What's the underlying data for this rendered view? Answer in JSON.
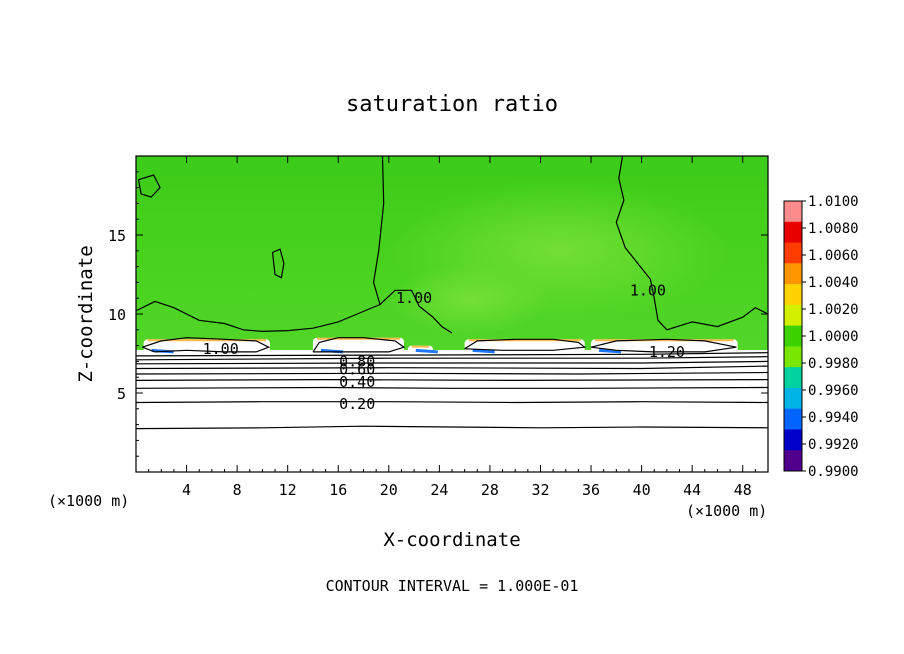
{
  "chart_data": {
    "type": "heatmap",
    "title": "saturation ratio",
    "xlabel": "X-coordinate",
    "ylabel": "Z-coordinate",
    "x_unit_left": "(×1000 m)",
    "x_unit_right": "(×1000 m)",
    "xlim": [
      0,
      50
    ],
    "ylim": [
      0,
      20
    ],
    "x_ticks": [
      4,
      8,
      12,
      16,
      20,
      24,
      28,
      32,
      36,
      40,
      44,
      48
    ],
    "y_ticks": [
      5,
      10,
      15
    ],
    "footer": "CONTOUR INTERVAL = 1.000E-01",
    "colorbar": {
      "ticks": [
        "1.0100",
        "1.0080",
        "1.0060",
        "1.0040",
        "1.0020",
        "1.0000",
        "0.9980",
        "0.9960",
        "0.9940",
        "0.9920",
        "0.9900"
      ],
      "colors": [
        "#ff8c8c",
        "#e60000",
        "#ff3c00",
        "#ff9600",
        "#ffd200",
        "#d2f000",
        "#3cd200",
        "#78e600",
        "#00d2a0",
        "#00b4e6",
        "#0064ff",
        "#0000c8",
        "#50008c"
      ]
    },
    "contour_labels": [
      {
        "text": "0.20",
        "x": 17.5,
        "y": 4.3
      },
      {
        "text": "0.40",
        "x": 17.5,
        "y": 5.7
      },
      {
        "text": "0.60",
        "x": 17.5,
        "y": 6.5
      },
      {
        "text": "0.80",
        "x": 17.5,
        "y": 7.0
      },
      {
        "text": "1.00",
        "x": 22.0,
        "y": 11.0
      },
      {
        "text": "1.00",
        "x": 40.5,
        "y": 11.5
      },
      {
        "text": "1.00",
        "x": 6.7,
        "y": 7.8
      },
      {
        "text": "1.20",
        "x": 42.0,
        "y": 7.6
      }
    ],
    "contours": [
      {
        "level": "0.10",
        "points": [
          [
            0,
            2.75
          ],
          [
            10,
            2.8
          ],
          [
            18,
            2.9
          ],
          [
            25,
            2.85
          ],
          [
            32,
            2.8
          ],
          [
            40,
            2.85
          ],
          [
            50,
            2.8
          ]
        ]
      },
      {
        "level": "0.20",
        "points": [
          [
            0,
            4.4
          ],
          [
            10,
            4.45
          ],
          [
            20,
            4.45
          ],
          [
            30,
            4.4
          ],
          [
            40,
            4.45
          ],
          [
            50,
            4.4
          ]
        ]
      },
      {
        "level": "0.30",
        "points": [
          [
            0,
            5.3
          ],
          [
            15,
            5.35
          ],
          [
            25,
            5.3
          ],
          [
            35,
            5.3
          ],
          [
            50,
            5.35
          ]
        ]
      },
      {
        "level": "0.40",
        "points": [
          [
            0,
            5.8
          ],
          [
            15,
            5.85
          ],
          [
            30,
            5.8
          ],
          [
            50,
            5.85
          ]
        ]
      },
      {
        "level": "0.50",
        "points": [
          [
            0,
            6.2
          ],
          [
            20,
            6.25
          ],
          [
            35,
            6.2
          ],
          [
            50,
            6.3
          ]
        ]
      },
      {
        "level": "0.60",
        "points": [
          [
            0,
            6.55
          ],
          [
            20,
            6.6
          ],
          [
            40,
            6.55
          ],
          [
            50,
            6.7
          ]
        ]
      },
      {
        "level": "0.70",
        "points": [
          [
            0,
            6.85
          ],
          [
            20,
            6.9
          ],
          [
            40,
            6.9
          ],
          [
            50,
            7.0
          ]
        ]
      },
      {
        "level": "0.80",
        "points": [
          [
            0,
            7.1
          ],
          [
            20,
            7.2
          ],
          [
            40,
            7.2
          ],
          [
            50,
            7.3
          ]
        ]
      },
      {
        "level": "0.90",
        "points": [
          [
            0,
            7.35
          ],
          [
            20,
            7.4
          ],
          [
            40,
            7.45
          ],
          [
            50,
            7.55
          ]
        ]
      },
      {
        "level": "1.00",
        "points": [
          [
            19.5,
            20
          ],
          [
            19.6,
            17
          ],
          [
            19.2,
            14
          ],
          [
            18.8,
            12
          ],
          [
            19.3,
            10.6
          ],
          [
            20.5,
            11.5
          ],
          [
            21.8,
            11.5
          ],
          [
            22.4,
            10.5
          ],
          [
            23.5,
            9.8
          ],
          [
            24.2,
            9.2
          ],
          [
            25,
            8.8
          ]
        ]
      },
      {
        "level": "1.00",
        "points": [
          [
            38.5,
            20
          ],
          [
            38.2,
            18.6
          ],
          [
            38.6,
            17.2
          ],
          [
            38.0,
            15.8
          ],
          [
            38.7,
            14.2
          ],
          [
            39.9,
            13.0
          ],
          [
            40.7,
            12.2
          ],
          [
            41.0,
            11.0
          ],
          [
            41.3,
            9.6
          ],
          [
            42.0,
            9.0
          ]
        ]
      },
      {
        "level": "1.00",
        "points": [
          [
            0,
            10.2
          ],
          [
            1.5,
            10.8
          ],
          [
            3,
            10.4
          ],
          [
            5,
            9.6
          ],
          [
            7,
            9.4
          ],
          [
            8.5,
            9.0
          ],
          [
            10,
            8.9
          ],
          [
            12,
            8.95
          ],
          [
            14,
            9.1
          ],
          [
            16,
            9.5
          ],
          [
            17.5,
            10.0
          ],
          [
            19.3,
            10.6
          ]
        ]
      },
      {
        "level": "1.00",
        "points": [
          [
            42,
            9.0
          ],
          [
            44,
            9.5
          ],
          [
            46,
            9.2
          ],
          [
            48,
            9.8
          ],
          [
            49,
            10.4
          ],
          [
            50,
            10.0
          ]
        ]
      },
      {
        "level": "1.00",
        "points": [
          [
            0.2,
            18.5
          ],
          [
            1.4,
            18.8
          ],
          [
            1.9,
            18.0
          ],
          [
            1.2,
            17.4
          ],
          [
            0.4,
            17.6
          ],
          [
            0.2,
            18.5
          ]
        ]
      },
      {
        "level": "1.00",
        "points": [
          [
            10.8,
            13.9
          ],
          [
            11.4,
            14.1
          ],
          [
            11.7,
            13.2
          ],
          [
            11.5,
            12.3
          ],
          [
            11.0,
            12.5
          ],
          [
            10.8,
            13.9
          ]
        ]
      },
      {
        "level": "1.20",
        "points": [
          [
            0.5,
            7.9
          ],
          [
            2,
            8.3
          ],
          [
            4,
            8.5
          ],
          [
            7,
            8.4
          ],
          [
            9.5,
            8.3
          ],
          [
            10.5,
            7.9
          ],
          [
            9.5,
            7.6
          ],
          [
            7,
            7.6
          ],
          [
            4,
            7.7
          ],
          [
            1.5,
            7.6
          ],
          [
            0.5,
            7.9
          ]
        ]
      },
      {
        "level": "1.20",
        "points": [
          [
            14.0,
            7.6
          ],
          [
            14.5,
            8.2
          ],
          [
            16,
            8.5
          ],
          [
            18,
            8.5
          ],
          [
            20.5,
            8.3
          ],
          [
            21.2,
            7.9
          ],
          [
            20,
            7.6
          ],
          [
            17,
            7.6
          ],
          [
            14.0,
            7.6
          ]
        ]
      },
      {
        "level": "1.20",
        "points": [
          [
            26,
            7.8
          ],
          [
            27,
            8.3
          ],
          [
            30,
            8.4
          ],
          [
            33,
            8.4
          ],
          [
            35,
            8.2
          ],
          [
            35.5,
            7.9
          ],
          [
            33,
            7.7
          ],
          [
            29,
            7.7
          ],
          [
            26,
            7.8
          ]
        ]
      },
      {
        "level": "1.20",
        "points": [
          [
            36,
            7.9
          ],
          [
            38,
            8.3
          ],
          [
            42,
            8.4
          ],
          [
            45,
            8.3
          ],
          [
            47.5,
            7.9
          ],
          [
            45,
            7.6
          ],
          [
            41,
            7.6
          ],
          [
            38,
            7.7
          ],
          [
            36,
            7.9
          ]
        ]
      }
    ],
    "clouds": [
      {
        "x0": 0.6,
        "x1": 10.6,
        "top": 8.4
      },
      {
        "x0": 14.0,
        "x1": 21.2,
        "top": 8.5
      },
      {
        "x0": 21.5,
        "x1": 23.5,
        "top": 8.0
      },
      {
        "x0": 26.0,
        "x1": 35.5,
        "top": 8.4
      },
      {
        "x0": 36.0,
        "x1": 47.6,
        "top": 8.4
      }
    ]
  }
}
